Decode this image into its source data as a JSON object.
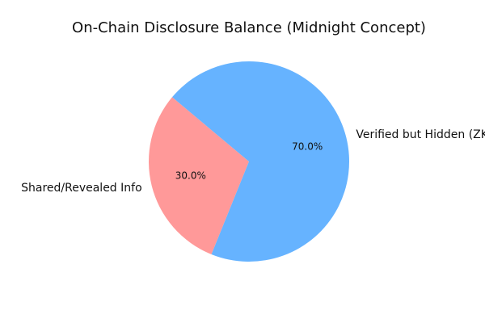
{
  "chart_data": {
    "type": "pie",
    "title": "On-Chain Disclosure Balance (Midnight Concept)",
    "labels": [
      "Shared/Revealed Info",
      "Verified but Hidden (ZK)"
    ],
    "values": [
      30,
      70
    ],
    "percent_labels": [
      "30.0%",
      "70.0%"
    ],
    "colors": [
      "#ff9999",
      "#66b3ff"
    ],
    "start_angle_deg": 140,
    "direction": "counterclockwise"
  }
}
